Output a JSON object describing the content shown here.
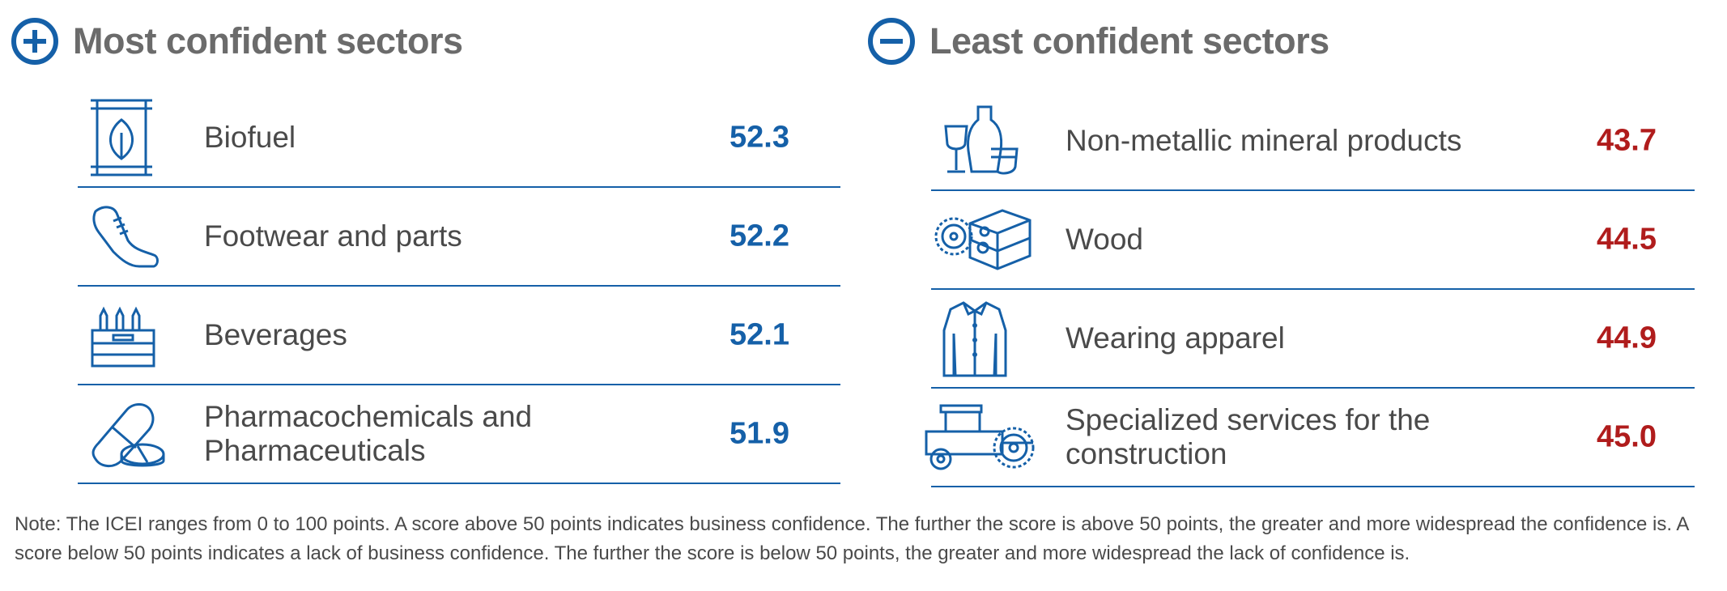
{
  "colors": {
    "accent": "#1560a8",
    "positive_value": "#1560a8",
    "negative_value": "#b01c1c",
    "title": "#6b6b6b",
    "text": "#4a4a4a"
  },
  "most_confident": {
    "title": "Most confident sectors",
    "icon": "plus-circle-icon",
    "rows": [
      {
        "label": "Biofuel",
        "value": "52.3",
        "icon": "biofuel-icon"
      },
      {
        "label": "Footwear and parts",
        "value": "52.2",
        "icon": "shoe-icon"
      },
      {
        "label": "Beverages",
        "value": "52.1",
        "icon": "bottle-crate-icon"
      },
      {
        "label": "Pharmacochemicals and\nPharmaceuticals",
        "value": "51.9",
        "icon": "pill-icon"
      }
    ]
  },
  "least_confident": {
    "title": "Least confident sectors",
    "icon": "minus-circle-icon",
    "rows": [
      {
        "label": "Non-metallic mineral products",
        "value": "43.7",
        "icon": "glassware-icon"
      },
      {
        "label": "Wood",
        "value": "44.5",
        "icon": "wood-saw-icon"
      },
      {
        "label": "Wearing apparel",
        "value": "44.9",
        "icon": "shirt-icon"
      },
      {
        "label": "Specialized services for the\nconstruction",
        "value": "45.0",
        "icon": "road-roller-icon"
      }
    ]
  },
  "note": "Note: The ICEI ranges from 0 to 100 points. A score above 50 points indicates business confidence. The further the score is above 50 points, the greater and more widespread the confidence is. A score below 50 points indicates a lack of business confidence. The further the score is below 50 points, the greater and more widespread the lack of confidence is."
}
